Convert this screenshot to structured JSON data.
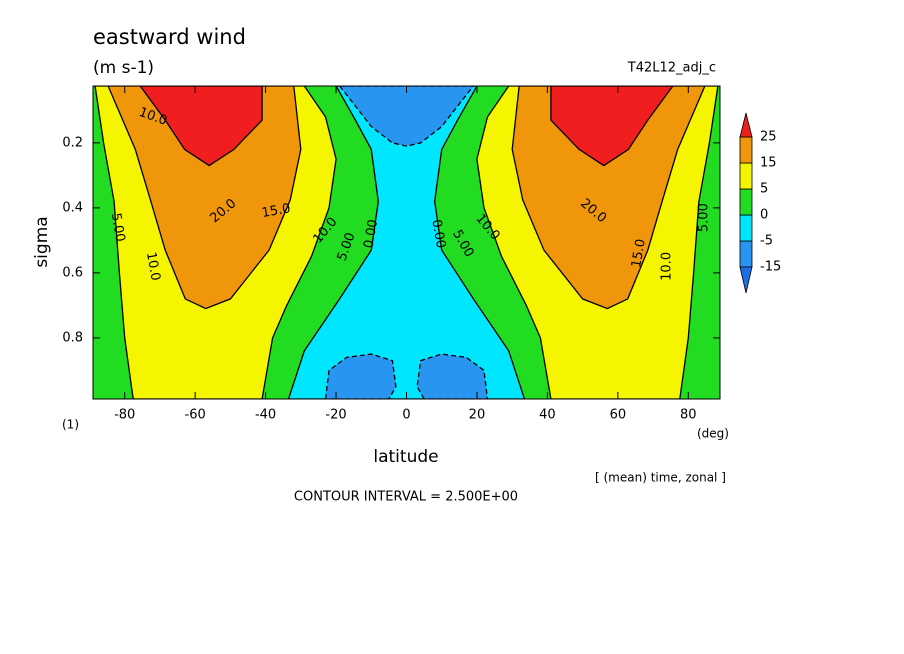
{
  "chart_data": {
    "type": "contour",
    "title": "eastward wind",
    "subtitle": "(m s-1)",
    "run_label": "T42L12_adj_c",
    "x_label": "latitude",
    "y_label": "sigma",
    "x_unit": "(deg)",
    "y_unit": "(1)",
    "note": "[ (mean) time, zonal ]",
    "contour_interval": "CONTOUR INTERVAL = 2.500E+00",
    "xlim": [
      -89,
      89
    ],
    "xticks": [
      -80,
      -60,
      -40,
      -20,
      0,
      20,
      40,
      60,
      80
    ],
    "ylim": [
      0.988,
      0.025
    ],
    "yticks": [
      0.2,
      0.4,
      0.6,
      0.8
    ],
    "background_color": "#22dc22",
    "colorbar": {
      "levels": [
        -15,
        -5,
        0,
        5,
        15,
        25
      ],
      "colors": [
        "#1e6ee6",
        "#2896f0",
        "#00e6ff",
        "#22dc22",
        "#f5f500",
        "#f0960a",
        "#f01e1e"
      ]
    },
    "regions": [
      {
        "level": 0,
        "color": "#00e6ff",
        "lat": [
          -20,
          -14.5,
          -10,
          -8,
          -10,
          -19,
          -29,
          -33.5,
          33.5,
          29,
          19,
          10,
          8,
          10,
          14.5,
          20
        ],
        "sigma": [
          0.025,
          0.13,
          0.22,
          0.38,
          0.53,
          0.68,
          0.84,
          0.988,
          0.988,
          0.84,
          0.68,
          0.53,
          0.38,
          0.22,
          0.13,
          0.025
        ]
      },
      {
        "level": -5,
        "color": "#2896f0",
        "lat": [
          -19,
          -15,
          -10,
          -4,
          0,
          4,
          10,
          15,
          19
        ],
        "sigma": [
          0.025,
          0.08,
          0.15,
          0.2,
          0.21,
          0.2,
          0.15,
          0.08,
          0.025
        ]
      },
      {
        "level": -5,
        "color": "#2896f0",
        "lat": [
          -23,
          -22,
          -17,
          -10,
          -4,
          -3,
          -5
        ],
        "sigma": [
          0.988,
          0.9,
          0.86,
          0.85,
          0.87,
          0.95,
          0.988
        ]
      },
      {
        "level": -5,
        "color": "#2896f0",
        "lat": [
          5,
          3,
          4,
          10,
          17,
          22,
          23
        ],
        "sigma": [
          0.988,
          0.95,
          0.87,
          0.85,
          0.86,
          0.9,
          0.988
        ]
      },
      {
        "level": 5,
        "color": "#f5f500",
        "lat": [
          -88.4,
          -86,
          -83,
          -81.5,
          -80,
          -77.6,
          -41,
          -38,
          -34,
          -27,
          -22,
          -20,
          -23,
          -29
        ],
        "sigma": [
          0.025,
          0.2,
          0.38,
          0.6,
          0.8,
          0.988,
          0.988,
          0.8,
          0.7,
          0.55,
          0.4,
          0.25,
          0.12,
          0.025
        ]
      },
      {
        "level": 5,
        "color": "#f5f500",
        "lat": [
          88.4,
          86,
          83,
          81.5,
          80,
          77.6,
          41,
          38,
          34,
          27,
          22,
          20,
          23,
          29
        ],
        "sigma": [
          0.025,
          0.2,
          0.38,
          0.6,
          0.8,
          0.988,
          0.988,
          0.8,
          0.7,
          0.55,
          0.4,
          0.25,
          0.12,
          0.025
        ]
      },
      {
        "level": 15,
        "color": "#f0960a",
        "lat": [
          -84.7,
          -77,
          -72.7,
          -68.5,
          -62.8,
          -57,
          -50,
          -39,
          -33,
          -30,
          -32
        ],
        "sigma": [
          0.025,
          0.22,
          0.375,
          0.53,
          0.68,
          0.71,
          0.68,
          0.53,
          0.375,
          0.22,
          0.025
        ]
      },
      {
        "level": 15,
        "color": "#f0960a",
        "lat": [
          84.7,
          77,
          72.7,
          68.5,
          62.8,
          57,
          50,
          39,
          33,
          30,
          32
        ],
        "sigma": [
          0.025,
          0.22,
          0.375,
          0.53,
          0.68,
          0.71,
          0.68,
          0.53,
          0.375,
          0.22,
          0.025
        ]
      },
      {
        "level": 25,
        "color": "#f01e1e",
        "lat": [
          -75.6,
          -68.5,
          -63,
          -56,
          -49,
          -41,
          -41
        ],
        "sigma": [
          0.025,
          0.13,
          0.22,
          0.27,
          0.22,
          0.13,
          0.025
        ]
      },
      {
        "level": 25,
        "color": "#f01e1e",
        "lat": [
          75.6,
          68.5,
          63,
          56,
          49,
          41,
          41
        ],
        "sigma": [
          0.025,
          0.13,
          0.22,
          0.27,
          0.22,
          0.13,
          0.025
        ]
      }
    ],
    "contour_labels": [
      "10.0",
      "5.00",
      "10.0",
      "20.0",
      "15.0",
      "10.0",
      "5.00",
      "0.00",
      "0.00",
      "5.00",
      "10.0",
      "20.0",
      "15.0",
      "10.0",
      "5.00"
    ]
  }
}
